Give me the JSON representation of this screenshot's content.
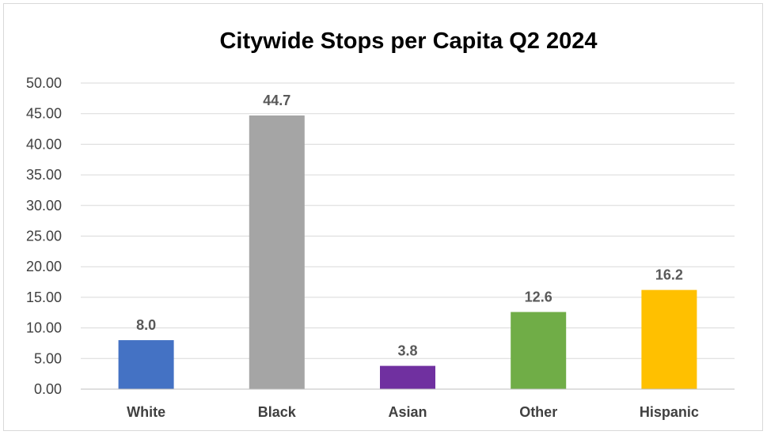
{
  "chart_data": {
    "type": "bar",
    "title": "Citywide Stops per Capita Q2 2024",
    "xlabel": "",
    "ylabel": "",
    "categories": [
      "White",
      "Black",
      "Asian",
      "Other",
      "Hispanic"
    ],
    "values": [
      8.0,
      44.7,
      3.8,
      12.6,
      16.2
    ],
    "data_labels": [
      "8.0",
      "44.7",
      "3.8",
      "12.6",
      "16.2"
    ],
    "colors": [
      "#4472c4",
      "#a5a5a5",
      "#7030a0",
      "#70ad47",
      "#ffc000"
    ],
    "ylim": [
      0,
      50
    ],
    "y_ticks": [
      "0.00",
      "5.00",
      "10.00",
      "15.00",
      "20.00",
      "25.00",
      "30.00",
      "35.00",
      "40.00",
      "45.00",
      "50.00"
    ],
    "grid": true,
    "legend": "none"
  }
}
